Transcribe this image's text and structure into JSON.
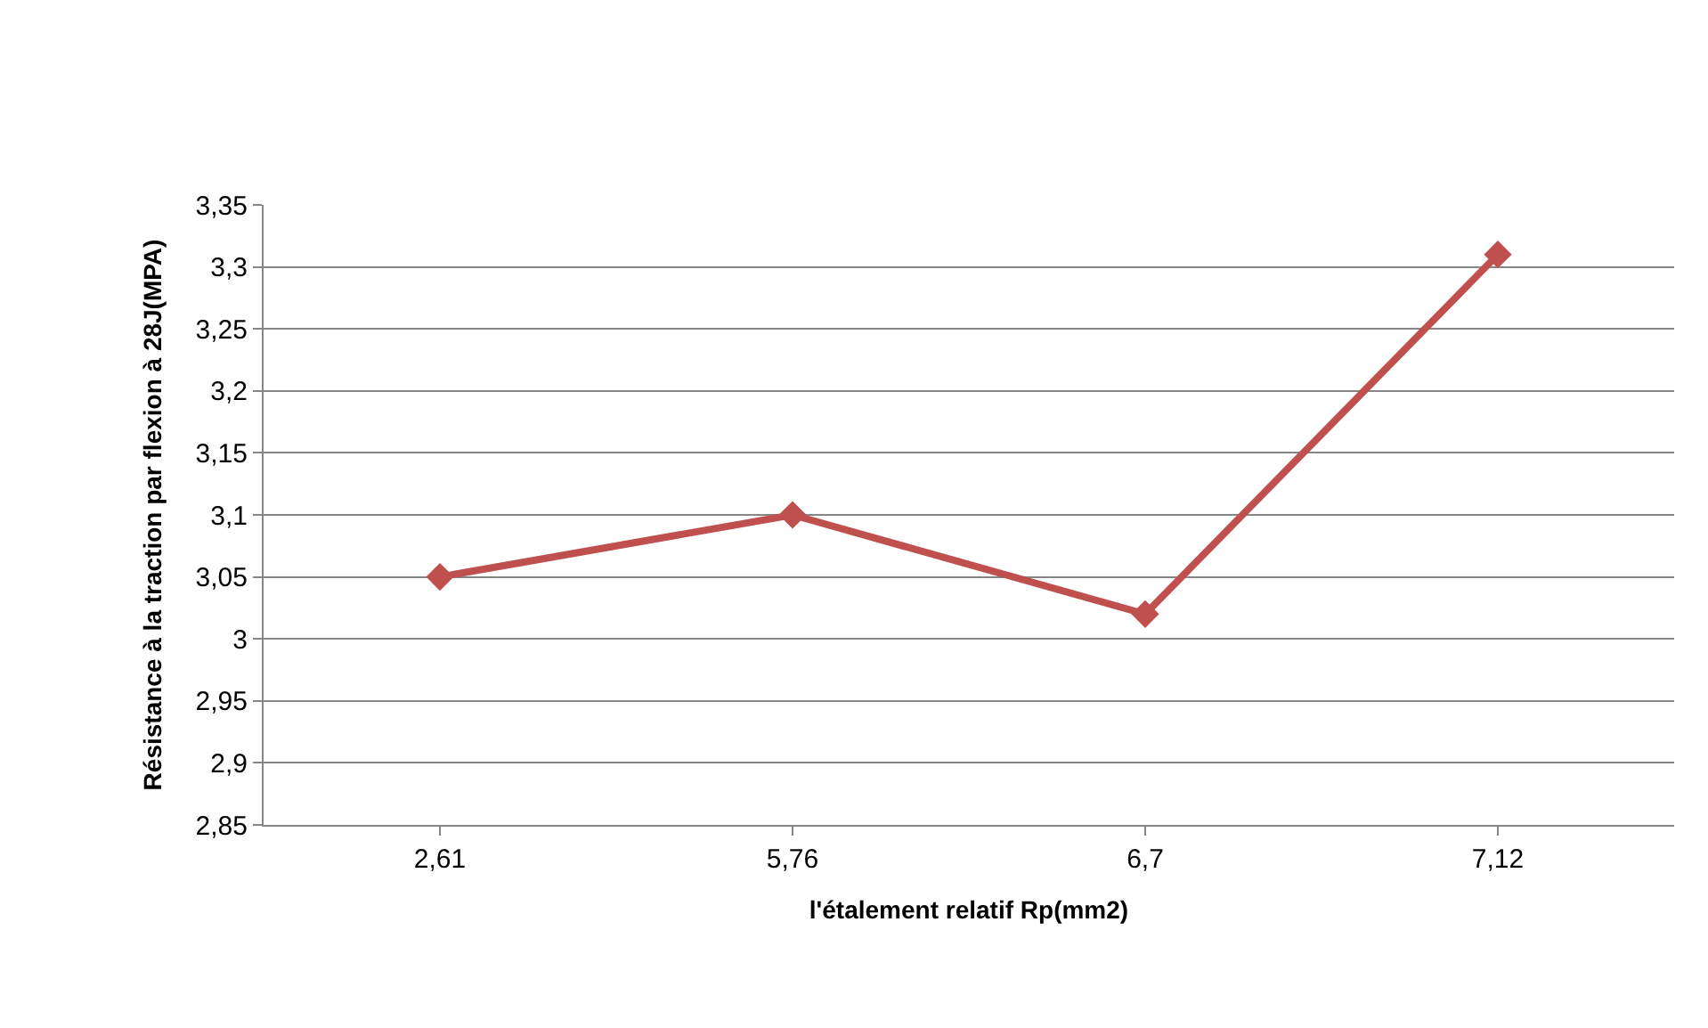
{
  "chart_data": {
    "type": "line",
    "xlabel": "l'étalement relatif Rp(mm2)",
    "ylabel": "Résistance à la traction par flexion à 28J(MPA)",
    "categories": [
      "2,61",
      "5,76",
      "6,7",
      "7,12"
    ],
    "series": [
      {
        "color": "#c0504d",
        "values": [
          3.05,
          3.1,
          3.02,
          3.31
        ]
      }
    ],
    "ylim": [
      2.85,
      3.35
    ],
    "yticks": [
      {
        "value": 2.85,
        "label": "2,85"
      },
      {
        "value": 2.9,
        "label": "2,9"
      },
      {
        "value": 2.95,
        "label": "2,95"
      },
      {
        "value": 3.0,
        "label": "3"
      },
      {
        "value": 3.05,
        "label": "3,05"
      },
      {
        "value": 3.1,
        "label": "3,1"
      },
      {
        "value": 3.15,
        "label": "3,15"
      },
      {
        "value": 3.2,
        "label": "3,2"
      },
      {
        "value": 3.25,
        "label": "3,25"
      },
      {
        "value": 3.3,
        "label": "3,3"
      },
      {
        "value": 3.35,
        "label": "3,35"
      }
    ],
    "grid": "y",
    "marker": "diamond",
    "line_style": "solid",
    "legend": false
  }
}
